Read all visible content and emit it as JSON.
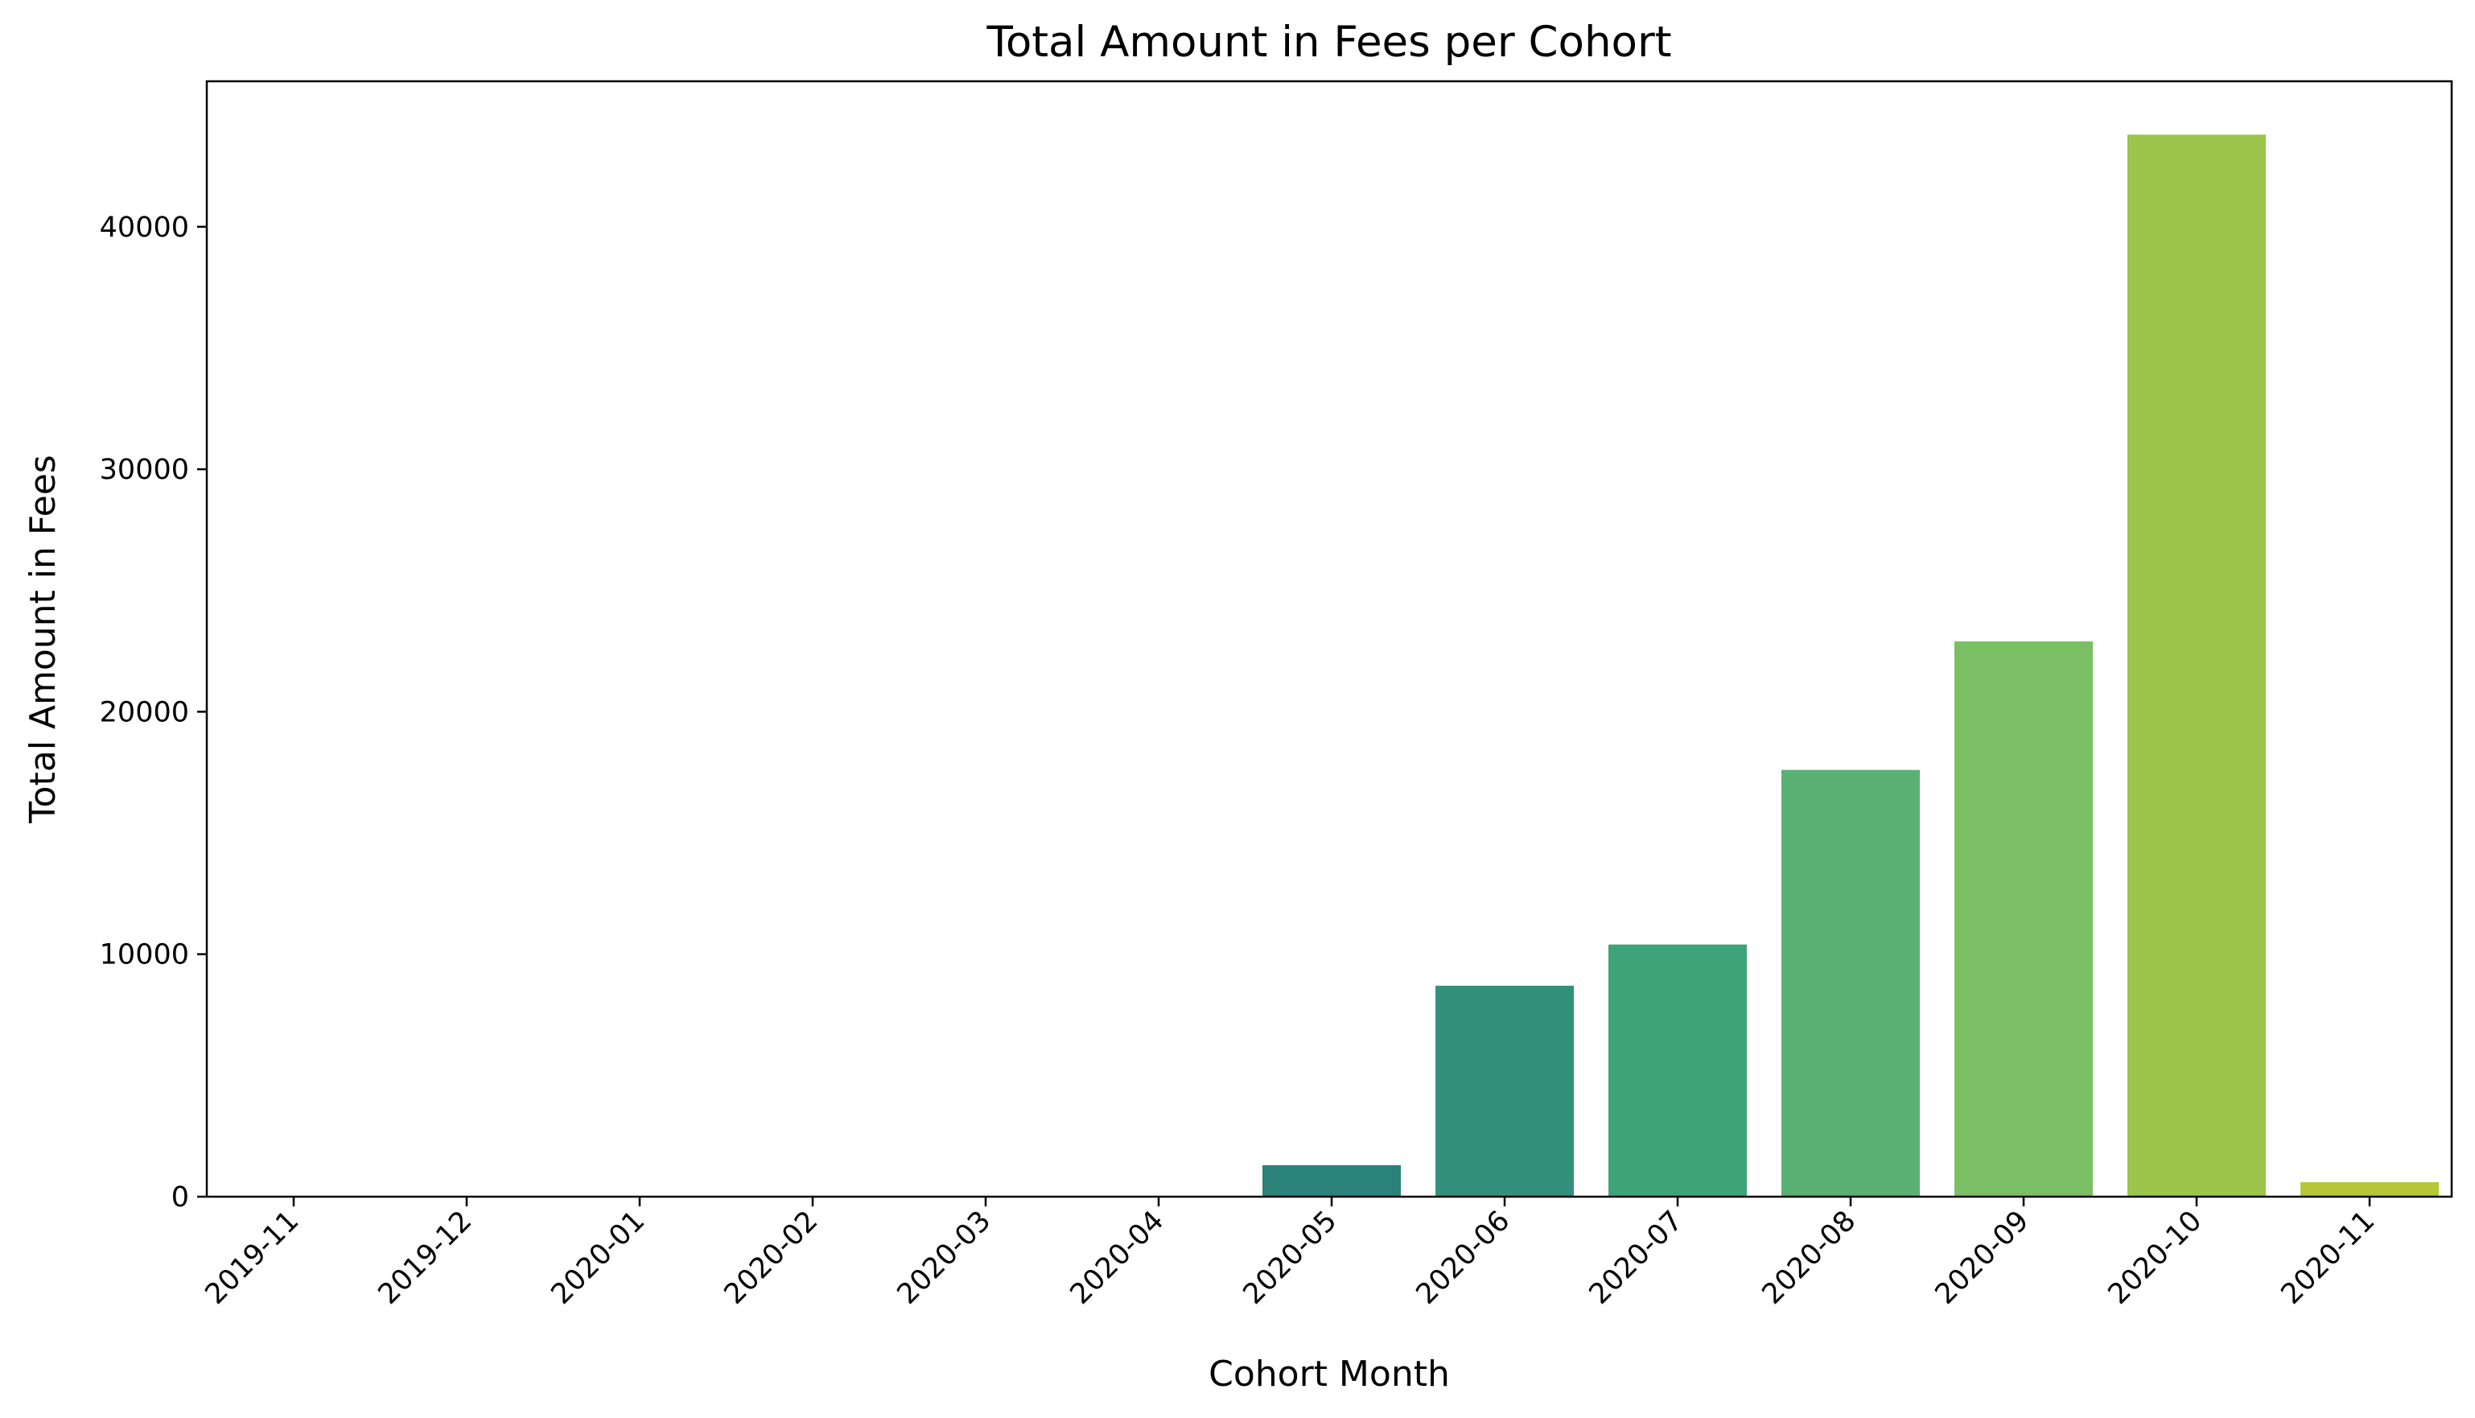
{
  "chart_data": {
    "type": "bar",
    "title": "Total Amount in Fees per Cohort",
    "xlabel": "Cohort Month",
    "ylabel": "Total Amount in Fees",
    "categories": [
      "2019-11",
      "2019-12",
      "2020-01",
      "2020-02",
      "2020-03",
      "2020-04",
      "2020-05",
      "2020-06",
      "2020-07",
      "2020-08",
      "2020-09",
      "2020-10",
      "2020-11"
    ],
    "values": [
      0,
      0,
      0,
      0,
      0,
      0,
      1300,
      8700,
      10400,
      17600,
      22900,
      43800,
      600
    ],
    "bar_colors": [
      "#440154",
      "#482475",
      "#414487",
      "#355f8d",
      "#2a788e",
      "#21918c",
      "#2a8279",
      "#32917d",
      "#3ea377",
      "#59b073",
      "#7bbf64",
      "#9bc54b",
      "#b5c737"
    ],
    "ylim": [
      0,
      46000
    ],
    "yticks": [
      0,
      10000,
      20000,
      30000,
      40000
    ],
    "grid": false,
    "legend": "none"
  }
}
